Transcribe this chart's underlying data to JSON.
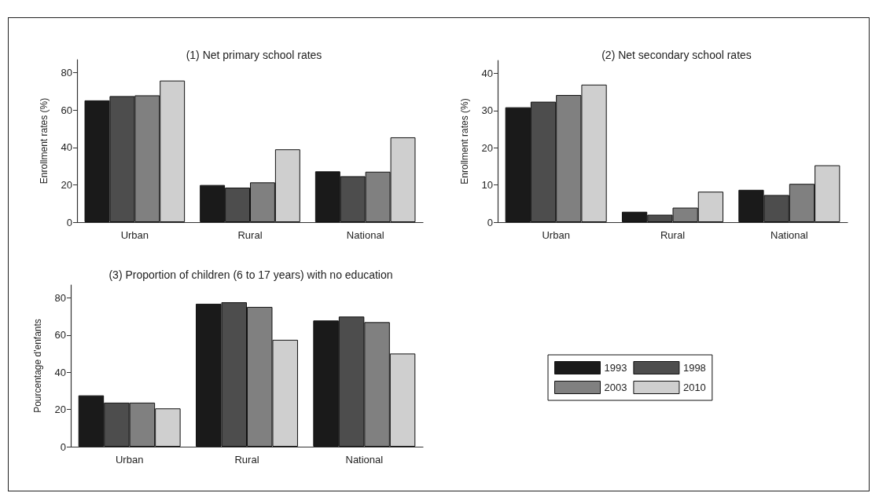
{
  "chart_data": [
    {
      "type": "bar",
      "title": "(1) Net primary school rates",
      "ylabel": "Enrollment rates (%)",
      "categories": [
        "Urban",
        "Rural",
        "National"
      ],
      "series": [
        {
          "color": "#1a1a1a",
          "values": [
            65.2,
            19.9,
            27.2
          ]
        },
        {
          "color": "#4d4d4d",
          "values": [
            67.5,
            18.5,
            24.6
          ]
        },
        {
          "color": "#808080",
          "values": [
            67.9,
            21.3,
            27.0
          ]
        },
        {
          "color": "#cfcfcf",
          "values": [
            75.8,
            39.0,
            45.4
          ]
        }
      ],
      "ylim": [
        0,
        87
      ],
      "yticks": [
        0,
        20,
        40,
        60,
        80
      ],
      "grid": false,
      "legend": false
    },
    {
      "type": "bar",
      "title": "(2) Net secondary school rates",
      "ylabel": "Enrollment rates (%)",
      "categories": [
        "Urban",
        "Rural",
        "National"
      ],
      "series": [
        {
          "color": "#1a1a1a",
          "values": [
            30.9,
            2.8,
            8.7
          ]
        },
        {
          "color": "#4d4d4d",
          "values": [
            32.4,
            2.0,
            7.3
          ]
        },
        {
          "color": "#808080",
          "values": [
            34.2,
            3.9,
            10.3
          ]
        },
        {
          "color": "#cfcfcf",
          "values": [
            37.0,
            8.2,
            15.3
          ]
        }
      ],
      "ylim": [
        0,
        43.5
      ],
      "yticks": [
        0,
        10,
        20,
        30,
        40
      ],
      "grid": false,
      "legend": false
    },
    {
      "type": "bar",
      "title": "(3) Proportion of children (6 to 17 years) with no education",
      "ylabel": "Pourcentage d'enfants",
      "categories": [
        "Urban",
        "Rural",
        "National"
      ],
      "series": [
        {
          "name": "1993",
          "color": "#1a1a1a",
          "values": [
            27.6,
            76.9,
            67.9
          ]
        },
        {
          "name": "1998",
          "color": "#4d4d4d",
          "values": [
            23.7,
            77.7,
            70.0
          ]
        },
        {
          "name": "2003",
          "color": "#808080",
          "values": [
            23.7,
            75.2,
            67.0
          ]
        },
        {
          "name": "2010",
          "color": "#cfcfcf",
          "values": [
            20.6,
            57.5,
            50.1
          ]
        }
      ],
      "ylim": [
        0,
        87
      ],
      "yticks": [
        0,
        20,
        40,
        60,
        80
      ],
      "grid": false,
      "legend": "right"
    }
  ]
}
